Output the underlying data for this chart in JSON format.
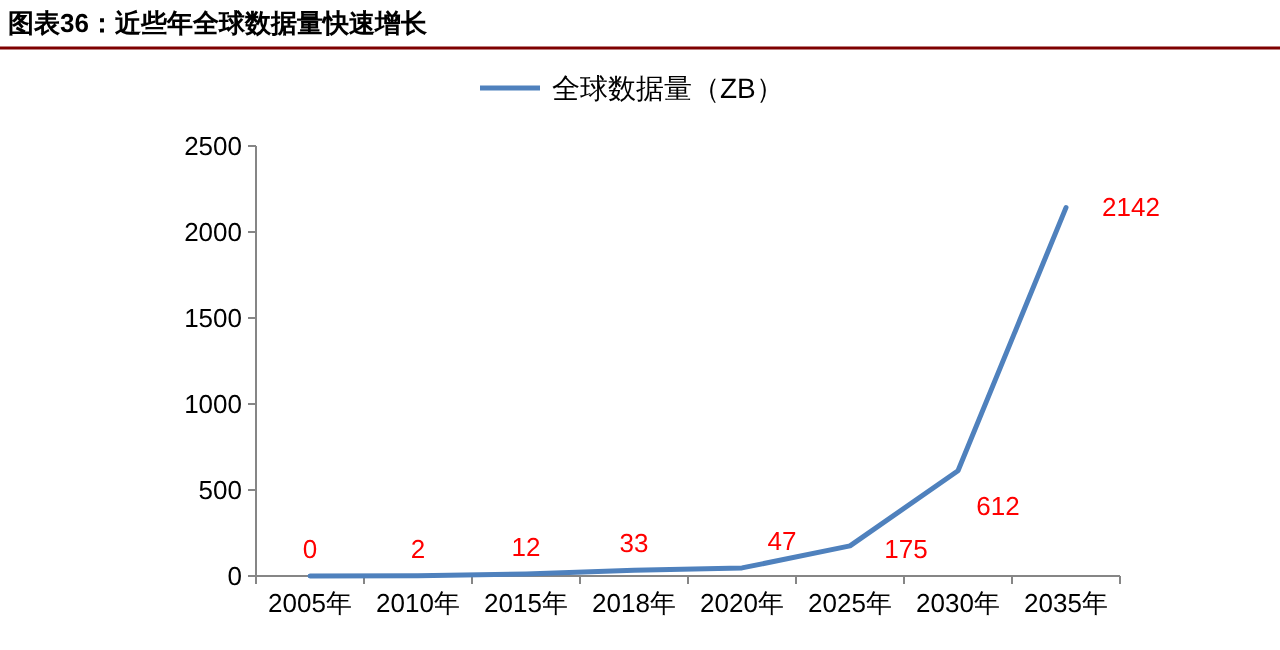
{
  "chart_data": {
    "type": "line",
    "title": "图表36：近些年全球数据量快速增长",
    "categories": [
      "2005年",
      "2010年",
      "2015年",
      "2018年",
      "2020年",
      "2025年",
      "2030年",
      "2035年"
    ],
    "series": [
      {
        "name": "全球数据量（ZB）",
        "color": "#4f81bd",
        "values": [
          0,
          2,
          12,
          33,
          47,
          175,
          612,
          2142
        ]
      }
    ],
    "ylim": [
      0,
      2500
    ],
    "yticks": [
      0,
      500,
      1000,
      1500,
      2000,
      2500
    ],
    "data_labels": true,
    "legend": "top",
    "grid": false,
    "marker": "none",
    "line_style": "solid"
  }
}
